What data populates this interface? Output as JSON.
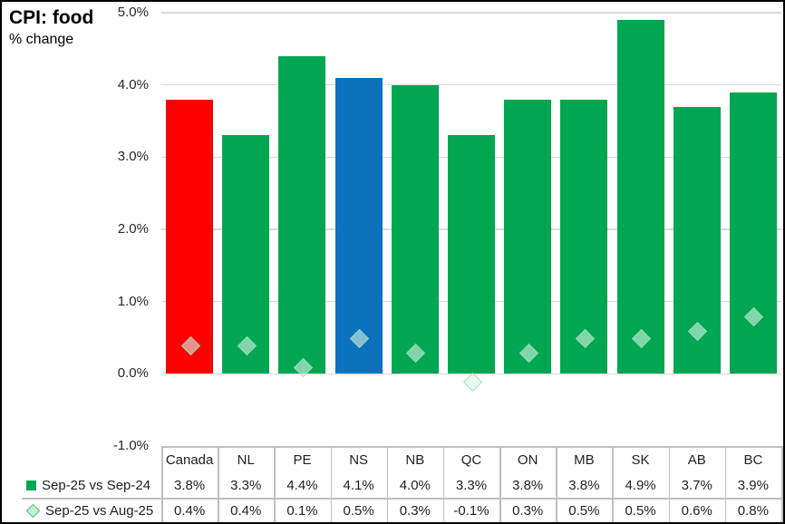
{
  "chart_data": {
    "type": "bar",
    "title": "CPI: food",
    "subtitle": "% change",
    "categories": [
      "Canada",
      "NL",
      "PE",
      "NS",
      "NB",
      "QC",
      "ON",
      "MB",
      "SK",
      "AB",
      "BC"
    ],
    "series": [
      {
        "name": "Sep-25 vs Sep-24",
        "type": "bar",
        "values": [
          3.8,
          3.3,
          4.4,
          4.1,
          4.0,
          3.3,
          3.8,
          3.8,
          4.9,
          3.7,
          3.9
        ],
        "display_values": [
          "3.8%",
          "3.3%",
          "4.4%",
          "4.1%",
          "4.0%",
          "3.3%",
          "3.8%",
          "3.8%",
          "4.9%",
          "3.7%",
          "3.9%"
        ]
      },
      {
        "name": "Sep-25 vs Aug-25",
        "type": "scatter",
        "marker": "diamond",
        "values": [
          0.4,
          0.4,
          0.1,
          0.5,
          0.3,
          -0.1,
          0.3,
          0.5,
          0.5,
          0.6,
          0.8
        ],
        "display_values": [
          "0.4%",
          "0.4%",
          "0.1%",
          "0.5%",
          "0.3%",
          "-0.1%",
          "0.3%",
          "0.5%",
          "0.5%",
          "0.6%",
          "0.8%"
        ]
      }
    ],
    "bar_colors": [
      "#FE0000",
      "#00A651",
      "#00A651",
      "#0B72BE",
      "#00A651",
      "#00A651",
      "#00A651",
      "#00A651",
      "#00A651",
      "#00A651",
      "#00A651"
    ],
    "ylim": [
      -1,
      5
    ],
    "y_ticks": [
      {
        "value": 5,
        "label": "5.0%"
      },
      {
        "value": 4,
        "label": "4.0%"
      },
      {
        "value": 3,
        "label": "3.0%"
      },
      {
        "value": 2,
        "label": "2.0%"
      },
      {
        "value": 1,
        "label": "1.0%"
      },
      {
        "value": 0,
        "label": "0.0%"
      },
      {
        "value": -1,
        "label": "-1.0%"
      }
    ],
    "gridlines": true,
    "legend_position": "bottom-table"
  },
  "colors": {
    "bar_default": "#00A651",
    "bar_canada": "#FE0000",
    "bar_ns": "#0B72BE",
    "gridline": "#D9D9D9",
    "table_border": "#BFBFBF",
    "text": "#1f1f1f",
    "marker_fill": "rgba(213,246,227,0.6)",
    "marker_border": "rgba(150,220,185,0.9)",
    "legend_square_fill": "#00A651",
    "legend_diamond_fill": "#C6EFCE",
    "legend_diamond_border": "#4BBE85"
  }
}
